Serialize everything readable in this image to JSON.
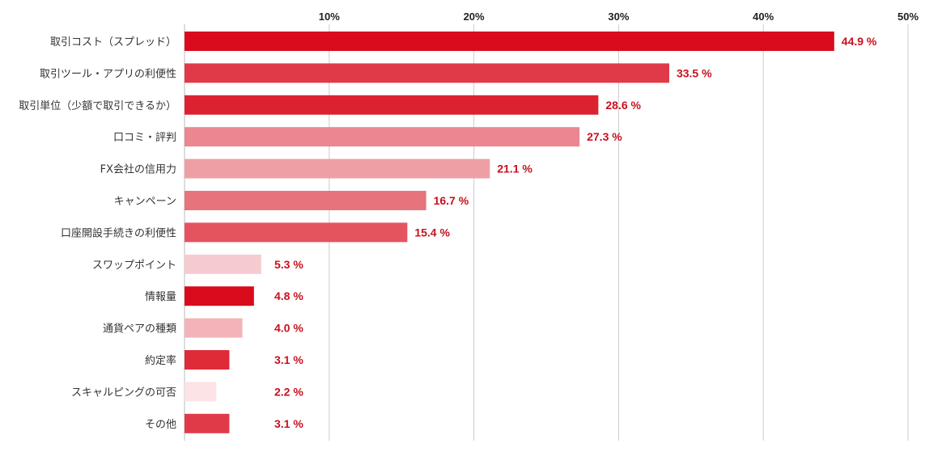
{
  "chart_data": {
    "type": "bar",
    "orientation": "horizontal",
    "categories": [
      "取引コスト（スプレッド）",
      "取引ツール・アプリの利便性",
      "取引単位（少額で取引できるか）",
      "口コミ・評判",
      "FX会社の信用力",
      "キャンペーン",
      "口座開設手続きの利便性",
      "スワップポイント",
      "情報量",
      "通貨ペアの種類",
      "約定率",
      "スキャルピングの可否",
      "その他"
    ],
    "values": [
      44.9,
      33.5,
      28.6,
      27.3,
      21.1,
      16.7,
      15.4,
      5.3,
      4.8,
      4.0,
      3.1,
      2.2,
      3.1
    ],
    "value_labels": [
      "44.9 %",
      "33.5 %",
      "28.6 %",
      "27.3 %",
      "21.1 %",
      "16.7 %",
      "15.4 %",
      "5.3 %",
      "4.8 %",
      "4.0 %",
      "3.1 %",
      "2.2 %",
      "3.1 %"
    ],
    "bar_colors": [
      "#d90b1c",
      "#e03a48",
      "#dc2231",
      "#ea8790",
      "#ee9fa6",
      "#e7737d",
      "#e4545f",
      "#f6cbd0",
      "#d90b1c",
      "#f2b4b9",
      "#df2a37",
      "#fbe3e6",
      "#e03a48"
    ],
    "xlim": [
      0,
      50
    ],
    "xticks": [
      10,
      20,
      30,
      40,
      50
    ],
    "xtick_labels": [
      "10%",
      "20%",
      "30%",
      "40%",
      "50%"
    ],
    "title": "",
    "xlabel": "",
    "ylabel": "",
    "grid": true,
    "label_color": "#c8101e",
    "grid_color": "#cccccc"
  }
}
